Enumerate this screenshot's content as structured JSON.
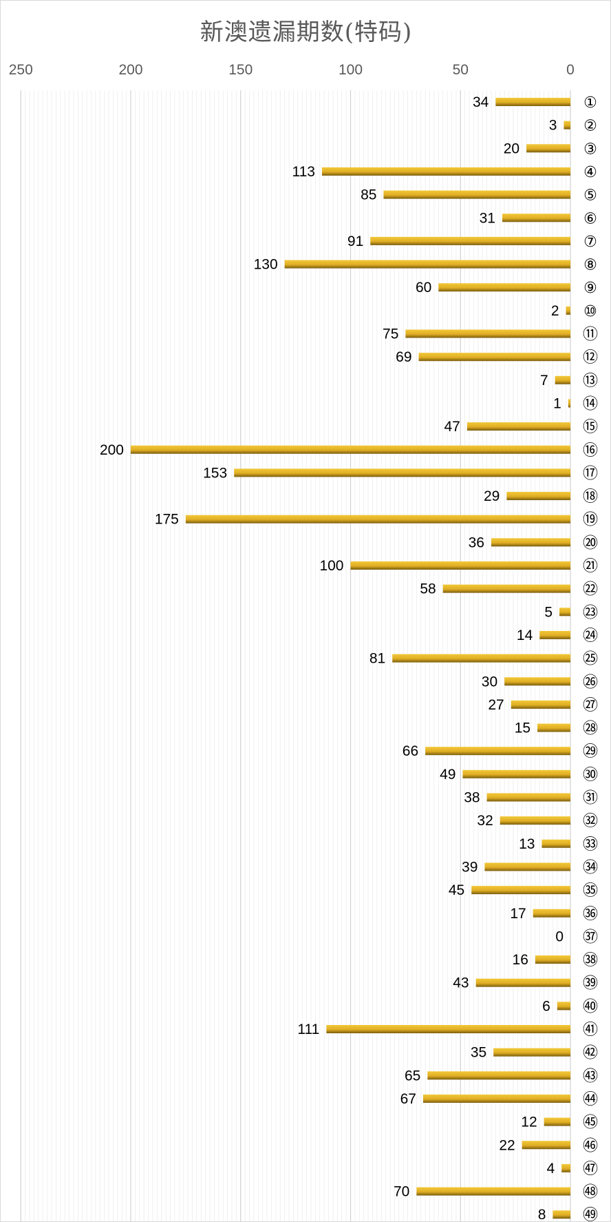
{
  "chart_data": {
    "type": "bar",
    "orientation": "horizontal",
    "x_axis_reversed": true,
    "x_axis_position": "top",
    "category_axis_position": "right",
    "title": "新澳遗漏期数(特码)",
    "xlim": [
      0,
      250
    ],
    "xticks": [
      "250",
      "200",
      "150",
      "100",
      "50",
      "0"
    ],
    "grid": true,
    "legend": "none",
    "bar_color": "#E6B52C",
    "bar_color_dark": "#7A5C0C",
    "categories": [
      "①",
      "②",
      "③",
      "④",
      "⑤",
      "⑥",
      "⑦",
      "⑧",
      "⑨",
      "⑩",
      "⑪",
      "⑫",
      "⑬",
      "⑭",
      "⑮",
      "⑯",
      "⑰",
      "⑱",
      "⑲",
      "⑳",
      "㉑",
      "㉒",
      "㉓",
      "㉔",
      "㉕",
      "㉖",
      "㉗",
      "㉘",
      "㉙",
      "㉚",
      "㉛",
      "㉜",
      "㉝",
      "㉞",
      "㉟",
      "㊱",
      "㊲",
      "㊳",
      "㊴",
      "㊵",
      "㊶",
      "㊷",
      "㊸",
      "㊹",
      "㊺",
      "㊻",
      "㊼",
      "㊽",
      "㊾"
    ],
    "values": [
      34,
      3,
      20,
      113,
      85,
      31,
      91,
      130,
      60,
      2,
      75,
      69,
      7,
      1,
      47,
      200,
      153,
      29,
      175,
      36,
      100,
      58,
      5,
      14,
      81,
      30,
      27,
      15,
      66,
      49,
      38,
      32,
      13,
      39,
      45,
      17,
      0,
      16,
      43,
      6,
      111,
      35,
      65,
      67,
      12,
      22,
      4,
      70,
      8
    ]
  }
}
